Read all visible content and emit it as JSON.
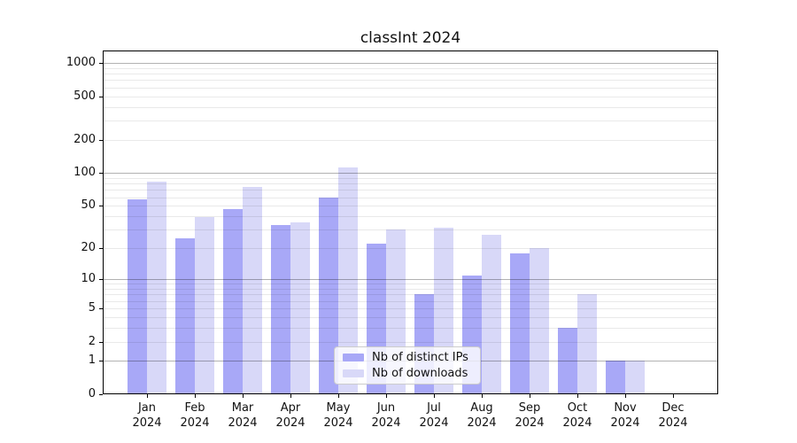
{
  "chart_data": {
    "type": "bar",
    "title": "classInt 2024",
    "categories": [
      "Jan 2024",
      "Feb 2024",
      "Mar 2024",
      "Apr 2024",
      "May 2024",
      "Jun 2024",
      "Jul 2024",
      "Aug 2024",
      "Sep 2024",
      "Oct 2024",
      "Nov 2024",
      "Dec 2024"
    ],
    "series": [
      {
        "name": "Nb of distinct IPs",
        "color": "#a8a8f7",
        "values": [
          57,
          25,
          47,
          33,
          60,
          22,
          7,
          11,
          18,
          3,
          1,
          0
        ]
      },
      {
        "name": "Nb of downloads",
        "color": "#d8d8f8",
        "values": [
          84,
          39,
          74,
          35,
          113,
          30,
          31,
          27,
          20,
          7,
          1,
          0
        ]
      }
    ],
    "y_scale": "log1p",
    "ylim": [
      0,
      1300
    ],
    "y_ticks": [
      1000,
      500,
      200,
      100,
      50,
      20,
      10,
      5,
      2,
      1,
      0
    ],
    "y_major_gridlines": [
      1,
      10,
      100,
      1000
    ],
    "y_minor_gridlines": [
      2,
      3,
      4,
      5,
      6,
      7,
      8,
      9,
      20,
      30,
      40,
      50,
      60,
      70,
      80,
      90,
      200,
      300,
      400,
      500,
      600,
      700,
      800,
      900
    ],
    "xlabel": "",
    "ylabel": "",
    "grid": true,
    "legend_position": "bottom-center"
  },
  "colors": {
    "background": "#ffffff",
    "axis": "#000000",
    "bar_distinct_ips": "#a8a8f7",
    "bar_downloads": "#d8d8f8",
    "major_grid": "#b3b3b3",
    "minor_grid": "#e9e9e9"
  }
}
